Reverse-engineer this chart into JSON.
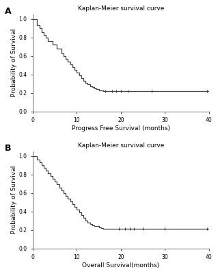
{
  "panel_A": {
    "title": "Kaplan-Meier survival curve",
    "xlabel": "Progress Free Survival (months)",
    "ylabel": "Probability of Survival",
    "panel_label": "A",
    "xlim": [
      0,
      40
    ],
    "ylim": [
      0.0,
      1.05
    ],
    "yticks": [
      0.0,
      0.2,
      0.4,
      0.6,
      0.8,
      1.0
    ],
    "xticks": [
      0,
      10,
      20,
      30,
      40
    ],
    "km_times": [
      0,
      0.3,
      1.0,
      1.5,
      2.0,
      2.5,
      3.0,
      3.5,
      4.5,
      5.5,
      6.5,
      7.0,
      7.5,
      8.0,
      8.5,
      9.0,
      9.5,
      10.0,
      10.5,
      11.0,
      11.5,
      12.0,
      12.5,
      13.0,
      13.5,
      14.0,
      14.5,
      15.0,
      16.0,
      40
    ],
    "km_surv": [
      1.0,
      1.0,
      0.93,
      0.9,
      0.86,
      0.83,
      0.8,
      0.76,
      0.72,
      0.68,
      0.63,
      0.6,
      0.57,
      0.54,
      0.51,
      0.48,
      0.45,
      0.42,
      0.39,
      0.36,
      0.33,
      0.31,
      0.29,
      0.27,
      0.26,
      0.25,
      0.24,
      0.23,
      0.22,
      0.22
    ],
    "censor_times": [
      16.5,
      18.0,
      19.0,
      20.0,
      21.5,
      27.0,
      39.5
    ],
    "censor_surv": [
      0.22,
      0.22,
      0.22,
      0.22,
      0.22,
      0.22,
      0.22
    ]
  },
  "panel_B": {
    "title": "Kaplan-Meier survival curve",
    "xlabel": "Overall Survival(months)",
    "ylabel": "Probability of Survival",
    "panel_label": "B",
    "xlim": [
      0,
      40
    ],
    "ylim": [
      0.0,
      1.05
    ],
    "yticks": [
      0.0,
      0.2,
      0.4,
      0.6,
      0.8,
      1.0
    ],
    "xticks": [
      0,
      10,
      20,
      30,
      40
    ],
    "km_times": [
      0,
      0.5,
      1.0,
      1.5,
      2.0,
      2.5,
      3.0,
      3.5,
      4.0,
      4.5,
      5.0,
      5.5,
      6.0,
      6.5,
      7.0,
      7.5,
      8.0,
      8.5,
      9.0,
      9.5,
      10.0,
      10.5,
      11.0,
      11.5,
      12.0,
      12.5,
      13.0,
      13.5,
      14.0,
      15.0,
      15.5,
      16.0,
      17.0,
      18.0,
      19.0,
      20.0,
      21.0,
      22.0,
      23.0,
      24.0,
      40
    ],
    "km_surv": [
      1.0,
      1.0,
      0.96,
      0.93,
      0.9,
      0.87,
      0.84,
      0.81,
      0.78,
      0.75,
      0.72,
      0.69,
      0.66,
      0.63,
      0.6,
      0.57,
      0.54,
      0.51,
      0.48,
      0.45,
      0.42,
      0.39,
      0.36,
      0.33,
      0.3,
      0.28,
      0.26,
      0.25,
      0.24,
      0.23,
      0.22,
      0.21,
      0.21,
      0.21,
      0.21,
      0.21,
      0.21,
      0.21,
      0.21,
      0.21,
      0.21
    ],
    "censor_times": [
      19.5,
      21.0,
      22.0,
      23.0,
      25.0,
      30.0,
      39.5
    ],
    "censor_surv": [
      0.21,
      0.21,
      0.21,
      0.21,
      0.21,
      0.21,
      0.21
    ]
  },
  "line_color": "#404040",
  "censor_color": "#404040",
  "bg_color": "#ffffff",
  "title_fontsize": 6.5,
  "label_fontsize": 6.5,
  "tick_fontsize": 5.5,
  "panel_label_fontsize": 9
}
